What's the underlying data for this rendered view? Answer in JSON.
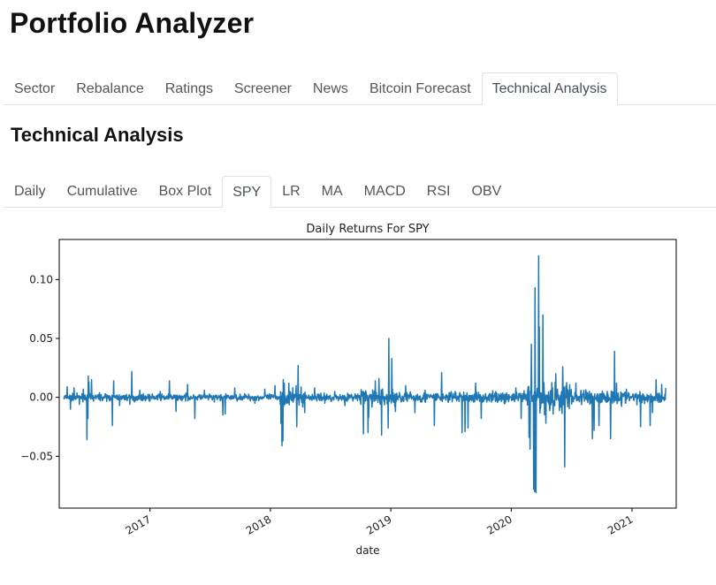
{
  "app": {
    "title": "Portfolio Analyzer"
  },
  "main_tabs": [
    {
      "label": "Sector",
      "active": false
    },
    {
      "label": "Rebalance",
      "active": false
    },
    {
      "label": "Ratings",
      "active": false
    },
    {
      "label": "Screener",
      "active": false
    },
    {
      "label": "News",
      "active": false
    },
    {
      "label": "Bitcoin Forecast",
      "active": false
    },
    {
      "label": "Technical Analysis",
      "active": true
    }
  ],
  "section": {
    "title": "Technical Analysis"
  },
  "sub_tabs": [
    {
      "label": "Daily",
      "active": false
    },
    {
      "label": "Cumulative",
      "active": false
    },
    {
      "label": "Box Plot",
      "active": false
    },
    {
      "label": "SPY",
      "active": true
    },
    {
      "label": "LR",
      "active": false
    },
    {
      "label": "MA",
      "active": false
    },
    {
      "label": "MACD",
      "active": false
    },
    {
      "label": "RSI",
      "active": false
    },
    {
      "label": "OBV",
      "active": false
    }
  ],
  "colors": {
    "line": "#1f77b4"
  },
  "chart_data": {
    "type": "line",
    "title": "Daily Returns For SPY",
    "xlabel": "date",
    "ylabel": "",
    "xlim": [
      "2016-04-01",
      "2021-05-15"
    ],
    "ylim": [
      -0.094,
      0.134
    ],
    "yticks": [
      -0.05,
      0.0,
      0.05,
      0.1
    ],
    "ytick_labels": [
      "−0.05",
      "0.00",
      "0.05",
      "0.10"
    ],
    "xticks": [
      "2017-01-01",
      "2018-01-01",
      "2019-01-01",
      "2020-01-01",
      "2021-01-01"
    ],
    "xtick_labels": [
      "2017",
      "2018",
      "2019",
      "2020",
      "2021"
    ],
    "grid": false,
    "legend": "none",
    "series": [
      {
        "values": [
          {
            "x": "2016-04-15",
            "y": 0.0
          },
          {
            "x": "2016-04-25",
            "y": 0.009
          },
          {
            "x": "2016-05-05",
            "y": -0.01
          },
          {
            "x": "2016-05-16",
            "y": 0.008
          },
          {
            "x": "2016-06-01",
            "y": -0.006
          },
          {
            "x": "2016-06-13",
            "y": 0.007
          },
          {
            "x": "2016-06-24",
            "y": -0.036
          },
          {
            "x": "2016-06-27",
            "y": -0.018
          },
          {
            "x": "2016-06-28",
            "y": 0.018
          },
          {
            "x": "2016-06-30",
            "y": 0.013
          },
          {
            "x": "2016-07-08",
            "y": 0.015
          },
          {
            "x": "2016-08-01",
            "y": 0.004
          },
          {
            "x": "2016-09-01",
            "y": -0.003
          },
          {
            "x": "2016-09-09",
            "y": -0.024
          },
          {
            "x": "2016-09-13",
            "y": 0.014
          },
          {
            "x": "2016-10-01",
            "y": -0.007
          },
          {
            "x": "2016-11-01",
            "y": -0.006
          },
          {
            "x": "2016-11-07",
            "y": 0.022
          },
          {
            "x": "2016-11-15",
            "y": -0.004
          },
          {
            "x": "2016-12-01",
            "y": 0.006
          },
          {
            "x": "2017-01-01",
            "y": -0.003
          },
          {
            "x": "2017-02-01",
            "y": 0.005
          },
          {
            "x": "2017-03-01",
            "y": 0.014
          },
          {
            "x": "2017-03-21",
            "y": -0.012
          },
          {
            "x": "2017-04-25",
            "y": 0.011
          },
          {
            "x": "2017-05-17",
            "y": -0.018
          },
          {
            "x": "2017-06-15",
            "y": 0.006
          },
          {
            "x": "2017-07-15",
            "y": -0.004
          },
          {
            "x": "2017-08-10",
            "y": -0.015
          },
          {
            "x": "2017-08-17",
            "y": -0.014
          },
          {
            "x": "2017-09-15",
            "y": 0.008
          },
          {
            "x": "2017-10-15",
            "y": 0.003
          },
          {
            "x": "2017-11-15",
            "y": -0.005
          },
          {
            "x": "2017-12-15",
            "y": 0.007
          },
          {
            "x": "2018-01-15",
            "y": 0.01
          },
          {
            "x": "2018-02-02",
            "y": -0.022
          },
          {
            "x": "2018-02-05",
            "y": -0.041
          },
          {
            "x": "2018-02-08",
            "y": -0.037
          },
          {
            "x": "2018-02-09",
            "y": 0.015
          },
          {
            "x": "2018-02-12",
            "y": 0.012
          },
          {
            "x": "2018-02-26",
            "y": 0.012
          },
          {
            "x": "2018-03-22",
            "y": -0.025
          },
          {
            "x": "2018-03-26",
            "y": 0.027
          },
          {
            "x": "2018-04-15",
            "y": -0.013
          },
          {
            "x": "2018-05-15",
            "y": 0.008
          },
          {
            "x": "2018-06-15",
            "y": -0.005
          },
          {
            "x": "2018-07-15",
            "y": 0.005
          },
          {
            "x": "2018-08-15",
            "y": -0.007
          },
          {
            "x": "2018-09-15",
            "y": 0.003
          },
          {
            "x": "2018-10-10",
            "y": -0.031
          },
          {
            "x": "2018-10-24",
            "y": -0.03
          },
          {
            "x": "2018-10-26",
            "y": -0.017
          },
          {
            "x": "2018-11-15",
            "y": 0.014
          },
          {
            "x": "2018-11-26",
            "y": 0.016
          },
          {
            "x": "2018-12-04",
            "y": -0.032
          },
          {
            "x": "2018-12-24",
            "y": -0.026
          },
          {
            "x": "2018-12-26",
            "y": 0.05
          },
          {
            "x": "2019-01-04",
            "y": 0.033
          },
          {
            "x": "2019-01-15",
            "y": -0.012
          },
          {
            "x": "2019-02-15",
            "y": 0.01
          },
          {
            "x": "2019-03-15",
            "y": -0.013
          },
          {
            "x": "2019-04-15",
            "y": 0.006
          },
          {
            "x": "2019-05-13",
            "y": -0.024
          },
          {
            "x": "2019-06-04",
            "y": 0.021
          },
          {
            "x": "2019-07-15",
            "y": 0.005
          },
          {
            "x": "2019-08-05",
            "y": -0.03
          },
          {
            "x": "2019-08-14",
            "y": -0.029
          },
          {
            "x": "2019-08-23",
            "y": -0.026
          },
          {
            "x": "2019-09-15",
            "y": 0.012
          },
          {
            "x": "2019-10-02",
            "y": -0.018
          },
          {
            "x": "2019-11-15",
            "y": 0.005
          },
          {
            "x": "2019-12-15",
            "y": -0.004
          },
          {
            "x": "2020-01-15",
            "y": 0.008
          },
          {
            "x": "2020-01-31",
            "y": -0.018
          },
          {
            "x": "2020-02-24",
            "y": -0.034
          },
          {
            "x": "2020-02-27",
            "y": -0.044
          },
          {
            "x": "2020-03-02",
            "y": 0.045
          },
          {
            "x": "2020-03-09",
            "y": -0.078
          },
          {
            "x": "2020-03-12",
            "y": -0.08
          },
          {
            "x": "2020-03-13",
            "y": 0.093
          },
          {
            "x": "2020-03-16",
            "y": -0.081
          },
          {
            "x": "2020-03-24",
            "y": 0.12
          },
          {
            "x": "2020-03-26",
            "y": 0.06
          },
          {
            "x": "2020-04-06",
            "y": 0.07
          },
          {
            "x": "2020-04-15",
            "y": -0.022
          },
          {
            "x": "2020-05-15",
            "y": 0.02
          },
          {
            "x": "2020-06-05",
            "y": 0.026
          },
          {
            "x": "2020-06-11",
            "y": -0.059
          },
          {
            "x": "2020-06-15",
            "y": 0.01
          },
          {
            "x": "2020-07-15",
            "y": 0.012
          },
          {
            "x": "2020-08-15",
            "y": 0.004
          },
          {
            "x": "2020-09-03",
            "y": -0.035
          },
          {
            "x": "2020-09-08",
            "y": -0.028
          },
          {
            "x": "2020-09-23",
            "y": -0.024
          },
          {
            "x": "2020-10-28",
            "y": -0.035
          },
          {
            "x": "2020-11-09",
            "y": 0.039
          },
          {
            "x": "2020-11-15",
            "y": 0.012
          },
          {
            "x": "2020-12-15",
            "y": 0.007
          },
          {
            "x": "2021-01-27",
            "y": -0.025
          },
          {
            "x": "2021-02-25",
            "y": -0.024
          },
          {
            "x": "2021-03-04",
            "y": -0.013
          },
          {
            "x": "2021-03-15",
            "y": 0.015
          },
          {
            "x": "2021-04-01",
            "y": 0.011
          },
          {
            "x": "2021-04-13",
            "y": 0.008
          }
        ]
      }
    ]
  }
}
